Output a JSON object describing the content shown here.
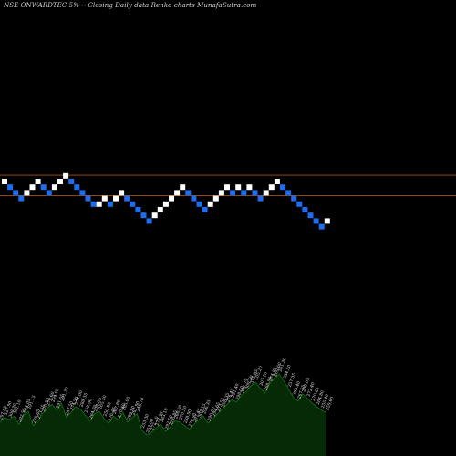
{
  "chart_data": {
    "type": "renko",
    "title": "NSE ONWARDTEC 5% -- Closing Daily data Renko charts MunafaSutra.com",
    "colors": {
      "background": "#000000",
      "up_brick": "#ffffff",
      "down_brick": "#1e6cf0",
      "reference_line": "#a0521c",
      "volume_fill": "#062a06",
      "volume_line": "#0c7a0c",
      "label_text": "#e6e6e6"
    },
    "bricks": [
      {
        "level": 5,
        "dir": "up"
      },
      {
        "level": 4,
        "dir": "down"
      },
      {
        "level": 3,
        "dir": "down"
      },
      {
        "level": 2,
        "dir": "down"
      },
      {
        "level": 3,
        "dir": "up"
      },
      {
        "level": 4,
        "dir": "up"
      },
      {
        "level": 5,
        "dir": "up"
      },
      {
        "level": 4,
        "dir": "down"
      },
      {
        "level": 3,
        "dir": "down"
      },
      {
        "level": 4,
        "dir": "up"
      },
      {
        "level": 5,
        "dir": "up"
      },
      {
        "level": 6,
        "dir": "up"
      },
      {
        "level": 5,
        "dir": "down"
      },
      {
        "level": 4,
        "dir": "down"
      },
      {
        "level": 3,
        "dir": "down"
      },
      {
        "level": 2,
        "dir": "down"
      },
      {
        "level": 1,
        "dir": "down"
      },
      {
        "level": 1,
        "dir": "up"
      },
      {
        "level": 2,
        "dir": "up"
      },
      {
        "level": 1,
        "dir": "down"
      },
      {
        "level": 2,
        "dir": "up"
      },
      {
        "level": 3,
        "dir": "up"
      },
      {
        "level": 2,
        "dir": "down"
      },
      {
        "level": 1,
        "dir": "down"
      },
      {
        "level": 0,
        "dir": "down"
      },
      {
        "level": -1,
        "dir": "down"
      },
      {
        "level": -2,
        "dir": "down"
      },
      {
        "level": -1,
        "dir": "up"
      },
      {
        "level": 0,
        "dir": "up"
      },
      {
        "level": 1,
        "dir": "up"
      },
      {
        "level": 2,
        "dir": "up"
      },
      {
        "level": 3,
        "dir": "up"
      },
      {
        "level": 4,
        "dir": "up"
      },
      {
        "level": 3,
        "dir": "down"
      },
      {
        "level": 2,
        "dir": "down"
      },
      {
        "level": 1,
        "dir": "down"
      },
      {
        "level": 0,
        "dir": "down"
      },
      {
        "level": 1,
        "dir": "up"
      },
      {
        "level": 2,
        "dir": "up"
      },
      {
        "level": 3,
        "dir": "up"
      },
      {
        "level": 4,
        "dir": "up"
      },
      {
        "level": 3,
        "dir": "down"
      },
      {
        "level": 4,
        "dir": "up"
      },
      {
        "level": 3,
        "dir": "down"
      },
      {
        "level": 4,
        "dir": "up"
      },
      {
        "level": 3,
        "dir": "down"
      },
      {
        "level": 2,
        "dir": "down"
      },
      {
        "level": 3,
        "dir": "up"
      },
      {
        "level": 4,
        "dir": "up"
      },
      {
        "level": 5,
        "dir": "up"
      },
      {
        "level": 4,
        "dir": "down"
      },
      {
        "level": 3,
        "dir": "down"
      },
      {
        "level": 2,
        "dir": "down"
      },
      {
        "level": 1,
        "dir": "down"
      },
      {
        "level": 0,
        "dir": "down"
      },
      {
        "level": -1,
        "dir": "down"
      },
      {
        "level": -2,
        "dir": "down"
      },
      {
        "level": -3,
        "dir": "down"
      },
      {
        "level": -2,
        "dir": "up"
      }
    ],
    "reference_lines": [
      {
        "level": 6.6
      },
      {
        "level": 3.0
      }
    ],
    "price_labels": [
      "297.05",
      "327.90",
      "308.30",
      "291.10",
      "292.55",
      "294.05",
      "291.15",
      "270.05",
      "273.65",
      "270.95",
      "270.60",
      "294.05",
      "291.55",
      "291.30",
      "287.50",
      "274.50",
      "277.00",
      "288.35",
      "258.90",
      "264.70",
      "274.05",
      "265.50",
      "250.85",
      "276.45",
      "267.80",
      "270.40",
      "285.00",
      "289.90",
      "261.90",
      "246.70",
      "253.30",
      "253.00",
      "272.10",
      "278.35",
      "283.10",
      "292.50",
      "286.85",
      "268.00",
      "270.50",
      "288.90",
      "276.90",
      "297.45",
      "303.15",
      "296.35",
      "290.00",
      "294.65",
      "273.55",
      "306.35",
      "276.45",
      "291.40",
      "298.00",
      "300.75",
      "309.20",
      "316.85",
      "305.20",
      "307.10",
      "288.05",
      "274.85",
      "269.60",
      "261.30",
      "264.50",
      "257.35",
      "263.40",
      "267.55",
      "259.05",
      "272.40",
      "270.25",
      "264.80",
      "255.40",
      "259.60"
    ],
    "volume": [
      29,
      33,
      31,
      34,
      27,
      35,
      38,
      26,
      30,
      36,
      41,
      44,
      39,
      45,
      33,
      37,
      42,
      40,
      35,
      30,
      36,
      38,
      32,
      28,
      34,
      31,
      37,
      29,
      33,
      36,
      22,
      18,
      20,
      24,
      27,
      21,
      25,
      30,
      29,
      26,
      23,
      27,
      31,
      34,
      28,
      32,
      36,
      40,
      44,
      48,
      46,
      52,
      55,
      60,
      63,
      58,
      54,
      62,
      66,
      70,
      64,
      57,
      50,
      47,
      53,
      49,
      45,
      42,
      39,
      37
    ]
  }
}
